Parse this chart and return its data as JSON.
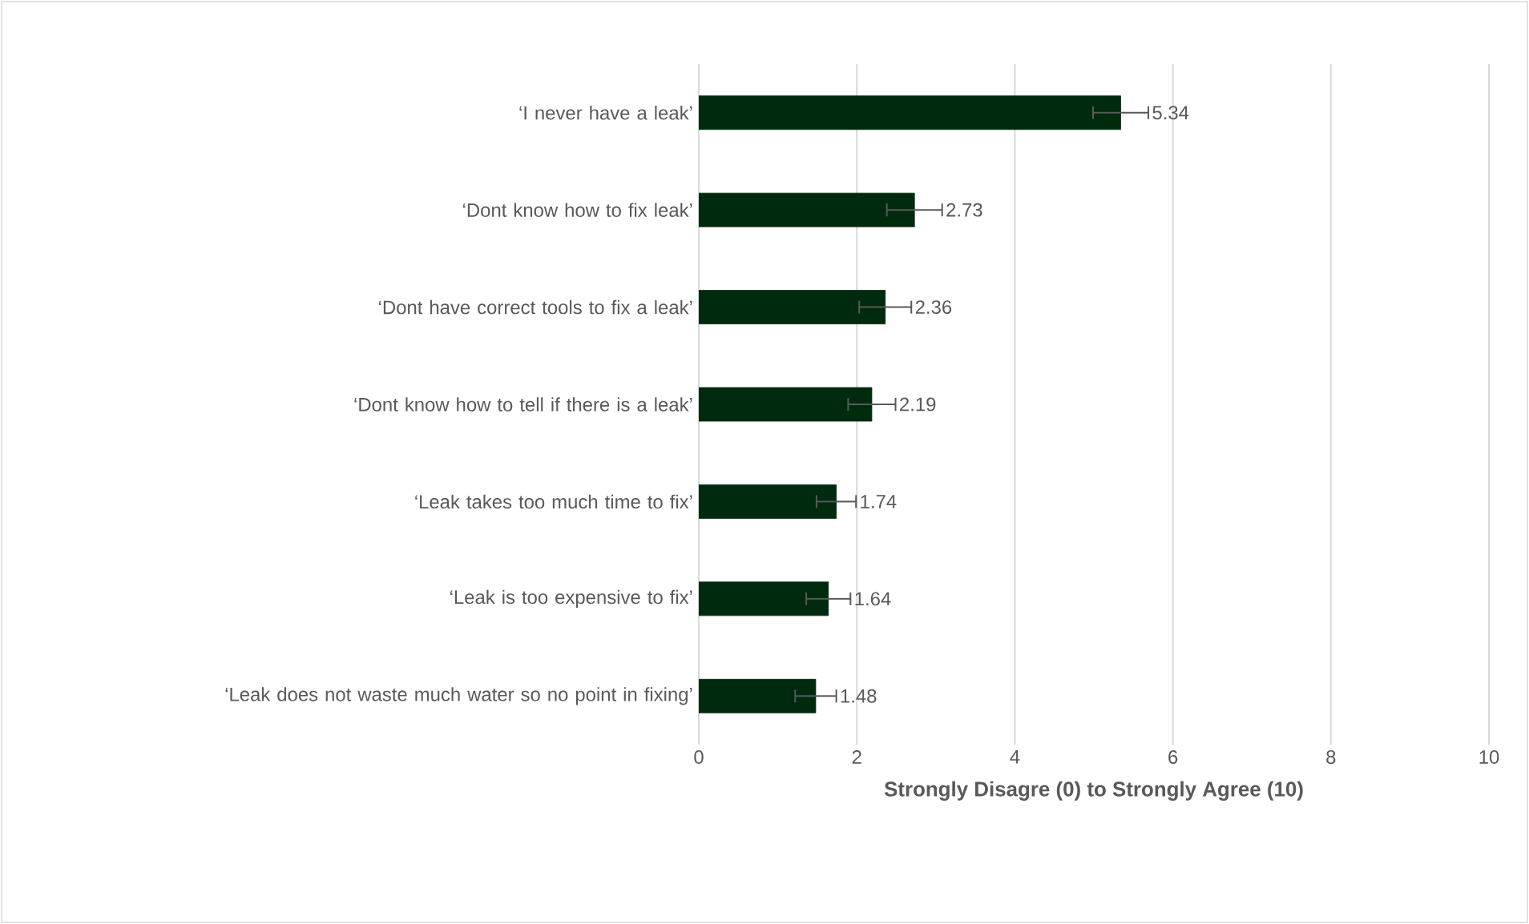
{
  "chart_data": {
    "type": "bar",
    "orientation": "horizontal",
    "xlabel": "Strongly Disagre (0) to Strongly Agree (10)",
    "categories": [
      "‘I never have a leak’",
      "‘Dont know how to fix leak’",
      "‘Dont have correct tools to fix a leak’",
      "‘Dont know how to tell if there is a leak’",
      "‘Leak takes too much time to fix’",
      "‘Leak is too expensive to fix’",
      "‘Leak does not waste much water so no point in fixing’"
    ],
    "values": [
      5.34,
      2.73,
      2.36,
      2.19,
      1.74,
      1.64,
      1.48
    ],
    "errors": [
      0.35,
      0.35,
      0.33,
      0.3,
      0.25,
      0.28,
      0.26
    ],
    "color": "#002a0e",
    "data_labels": true,
    "grid": "x",
    "xlim": [
      0,
      10
    ],
    "xticks": [
      0,
      2,
      4,
      6,
      8,
      10
    ]
  }
}
